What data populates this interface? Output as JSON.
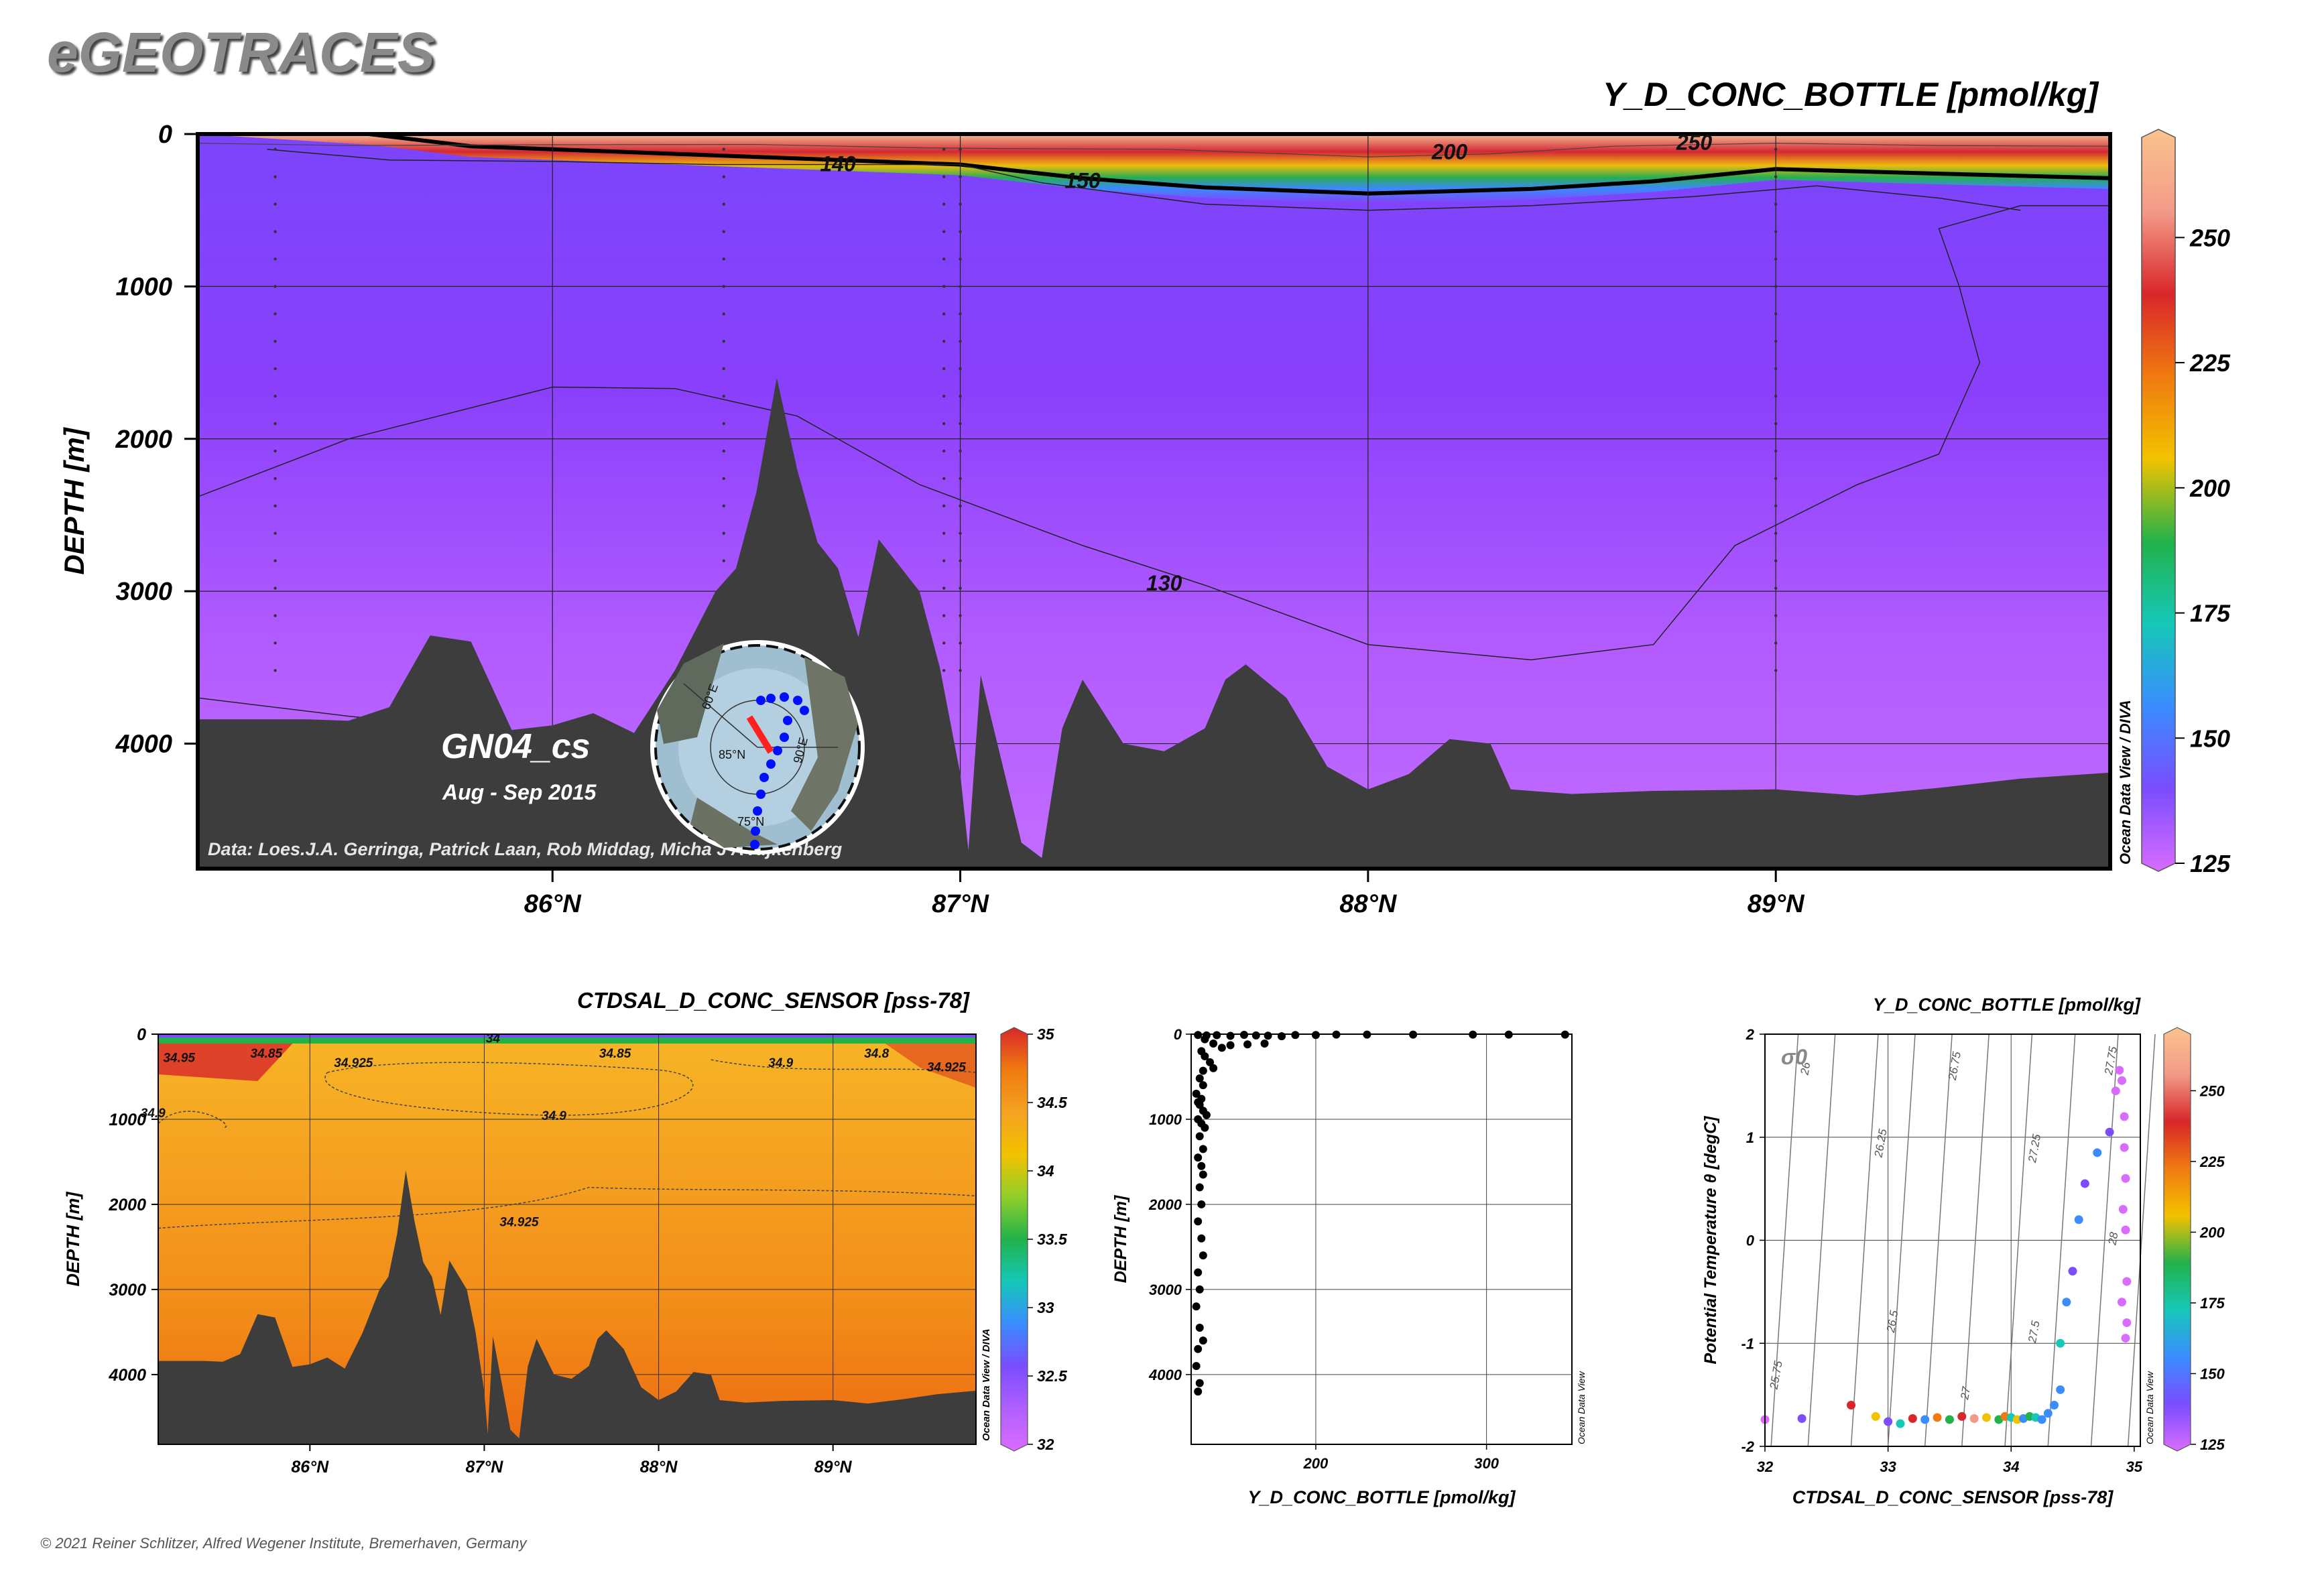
{
  "brand": "eGEOTRACES",
  "copyright": "© 2021 Reiner Schlitzer, Alfred Wegener Institute, Bremerhaven, Germany",
  "colorbar_colors": [
    "#d96cff",
    "#7a4dff",
    "#3a8cff",
    "#15c8b8",
    "#22b24a",
    "#f2c200",
    "#f07a10",
    "#d8262a",
    "#f29a88",
    "#fbc38e"
  ],
  "colors": {
    "section_bg": "#8a3dfb",
    "deep_purple": "#b65cff",
    "bathymetry": "#3d3d3d",
    "salinity_bg": "#f5a221",
    "salinity_deep": "#f07a10",
    "bottle_points": "#000000",
    "track": "#0010ff",
    "track_highlight": "#ff2020"
  },
  "chart_data": [
    {
      "type": "heatmap",
      "title": "Y_D_CONC_BOTTLE [pmol/kg]",
      "ylabel": "DEPTH [m]",
      "xlabel": "",
      "x_ticks": [
        "86°N",
        "87°N",
        "88°N",
        "89°N"
      ],
      "x_tick_values": [
        86,
        87,
        88,
        89
      ],
      "y_ticks": [
        "0",
        "1000",
        "2000",
        "3000",
        "4000"
      ],
      "y_tick_values": [
        0,
        1000,
        2000,
        3000,
        4000
      ],
      "xlim": [
        85.13,
        89.82
      ],
      "ylim": [
        4820,
        0
      ],
      "colorbar_ticks": [
        "125",
        "150",
        "175",
        "200",
        "225",
        "250"
      ],
      "colorbar_range": [
        125,
        270
      ],
      "contour_labels": [
        {
          "label": "140",
          "x": 86.7,
          "depth": 200
        },
        {
          "label": "150",
          "x": 87.3,
          "depth": 310
        },
        {
          "label": "200",
          "x": 88.2,
          "depth": 120
        },
        {
          "label": "250",
          "x": 88.8,
          "depth": 60
        },
        {
          "label": "130",
          "x": 87.5,
          "depth": 2950
        }
      ],
      "station_name": "GN04_cs",
      "date_range": "Aug - Sep 2015",
      "credit": "Data: Loes.J.A. Gerringa, Patrick Laan, Rob Middag, Micha J A Rijkenberg",
      "vertical_watermark": "Ocean Data View / DIVA",
      "map_labels": [
        "90°E",
        "85°N",
        "75°N",
        "60°E"
      ]
    },
    {
      "type": "heatmap",
      "title": "CTDSAL_D_CONC_SENSOR [pss-78]",
      "ylabel": "DEPTH [m]",
      "xlabel": "",
      "x_ticks": [
        "86°N",
        "87°N",
        "88°N",
        "89°N"
      ],
      "x_tick_values": [
        86,
        87,
        88,
        89
      ],
      "y_ticks": [
        "0",
        "1000",
        "2000",
        "3000",
        "4000"
      ],
      "y_tick_values": [
        0,
        1000,
        2000,
        3000,
        4000
      ],
      "xlim": [
        85.13,
        89.82
      ],
      "ylim": [
        4820,
        0
      ],
      "colorbar_ticks": [
        "32",
        "32.5",
        "33",
        "33.5",
        "34",
        "34.5",
        "35"
      ],
      "colorbar_range": [
        32,
        35
      ],
      "contour_labels": [
        {
          "label": "34.95",
          "x": 85.25,
          "depth": 280
        },
        {
          "label": "34.85",
          "x": 85.75,
          "depth": 230
        },
        {
          "label": "34.925",
          "x": 86.25,
          "depth": 340
        },
        {
          "label": "34.85",
          "x": 87.75,
          "depth": 230
        },
        {
          "label": "34.9",
          "x": 88.7,
          "depth": 340
        },
        {
          "label": "34.8",
          "x": 89.25,
          "depth": 230
        },
        {
          "label": "34.925",
          "x": 89.65,
          "depth": 390
        },
        {
          "label": "34.9",
          "x": 85.1,
          "depth": 930
        },
        {
          "label": "34.9",
          "x": 87.4,
          "depth": 960
        },
        {
          "label": "34.925",
          "x": 87.2,
          "depth": 2210
        },
        {
          "label": "34",
          "x": 87.05,
          "depth": 50
        }
      ],
      "vertical_watermark": "Ocean Data View / DIVA"
    },
    {
      "type": "scatter",
      "title": "",
      "xlabel": "Y_D_CONC_BOTTLE [pmol/kg]",
      "ylabel": "DEPTH [m]",
      "x_ticks": [
        "200",
        "300"
      ],
      "y_ticks": [
        "0",
        "1000",
        "2000",
        "3000",
        "4000"
      ],
      "xlim": [
        127,
        350
      ],
      "ylim": [
        4820,
        0
      ],
      "vertical_watermark": "Ocean Data View",
      "points": [
        [
          131,
          10
        ],
        [
          136,
          15
        ],
        [
          142,
          12
        ],
        [
          150,
          20
        ],
        [
          158,
          8
        ],
        [
          165,
          15
        ],
        [
          172,
          18
        ],
        [
          180,
          25
        ],
        [
          188,
          10
        ],
        [
          200,
          10
        ],
        [
          212,
          5
        ],
        [
          230,
          5
        ],
        [
          257,
          5
        ],
        [
          292,
          5
        ],
        [
          313,
          5
        ],
        [
          346,
          5
        ],
        [
          135,
          60
        ],
        [
          140,
          110
        ],
        [
          145,
          160
        ],
        [
          150,
          130
        ],
        [
          160,
          120
        ],
        [
          170,
          110
        ],
        [
          133,
          200
        ],
        [
          135,
          260
        ],
        [
          138,
          330
        ],
        [
          140,
          400
        ],
        [
          134,
          430
        ],
        [
          132,
          520
        ],
        [
          134,
          600
        ],
        [
          130,
          700
        ],
        [
          133,
          760
        ],
        [
          131,
          800
        ],
        [
          132,
          830
        ],
        [
          134,
          900
        ],
        [
          136,
          950
        ],
        [
          131,
          1000
        ],
        [
          133,
          1050
        ],
        [
          135,
          1100
        ],
        [
          132,
          1200
        ],
        [
          134,
          1350
        ],
        [
          131,
          1450
        ],
        [
          133,
          1550
        ],
        [
          134,
          1650
        ],
        [
          132,
          1800
        ],
        [
          133,
          2000
        ],
        [
          131,
          2200
        ],
        [
          133,
          2400
        ],
        [
          134,
          2600
        ],
        [
          131,
          2800
        ],
        [
          132,
          3000
        ],
        [
          130,
          3200
        ],
        [
          132,
          3450
        ],
        [
          134,
          3600
        ],
        [
          131,
          3700
        ],
        [
          130,
          3900
        ],
        [
          132,
          4100
        ],
        [
          131,
          4200
        ]
      ]
    },
    {
      "type": "scatter",
      "title": "Y_D_CONC_BOTTLE [pmol/kg]",
      "xlabel": "CTDSAL_D_CONC_SENSOR [pss-78]",
      "ylabel": "Potential Temperature θ [degC]",
      "x_ticks": [
        "32",
        "33",
        "34",
        "35"
      ],
      "y_ticks": [
        "-2",
        "-1",
        "0",
        "1",
        "2"
      ],
      "xlim": [
        32,
        35.05
      ],
      "ylim": [
        -2,
        2
      ],
      "sigma_label": "σ0",
      "isopycnal_labels": [
        "26",
        "26.25",
        "26.5",
        "26.75",
        "27",
        "27.25",
        "27.5",
        "27.75",
        "28",
        "25.75"
      ],
      "colorbar_ticks": [
        "125",
        "150",
        "175",
        "200",
        "225",
        "250"
      ],
      "colorbar_range": [
        125,
        270
      ],
      "vertical_watermark": "Ocean Data View",
      "points": [
        [
          32.0,
          -1.74,
          130
        ],
        [
          32.3,
          -1.73,
          135
        ],
        [
          32.7,
          -1.6,
          230
        ],
        [
          32.9,
          -1.71,
          200
        ],
        [
          33.0,
          -1.76,
          145
        ],
        [
          33.1,
          -1.78,
          170
        ],
        [
          33.2,
          -1.73,
          240
        ],
        [
          33.3,
          -1.74,
          160
        ],
        [
          33.4,
          -1.72,
          215
        ],
        [
          33.5,
          -1.74,
          190
        ],
        [
          33.6,
          -1.71,
          230
        ],
        [
          33.7,
          -1.73,
          250
        ],
        [
          33.8,
          -1.72,
          210
        ],
        [
          33.9,
          -1.74,
          190
        ],
        [
          33.95,
          -1.71,
          220
        ],
        [
          34.0,
          -1.72,
          175
        ],
        [
          34.05,
          -1.74,
          200
        ],
        [
          34.1,
          -1.73,
          150
        ],
        [
          34.15,
          -1.71,
          195
        ],
        [
          34.2,
          -1.72,
          180
        ],
        [
          34.25,
          -1.74,
          160
        ],
        [
          34.3,
          -1.68,
          155
        ],
        [
          34.35,
          -1.6,
          165
        ],
        [
          34.4,
          -1.45,
          150
        ],
        [
          34.4,
          -1.0,
          180
        ],
        [
          34.45,
          -0.6,
          160
        ],
        [
          34.5,
          -0.3,
          145
        ],
        [
          34.55,
          0.2,
          150
        ],
        [
          34.6,
          0.55,
          145
        ],
        [
          34.7,
          0.85,
          150
        ],
        [
          34.8,
          1.05,
          135
        ],
        [
          34.85,
          1.45,
          130
        ],
        [
          34.88,
          1.65,
          130
        ],
        [
          34.9,
          1.55,
          128
        ],
        [
          34.92,
          1.2,
          128
        ],
        [
          34.93,
          0.6,
          127
        ],
        [
          34.93,
          0.1,
          127
        ],
        [
          34.94,
          -0.4,
          126
        ],
        [
          34.94,
          -0.8,
          126
        ],
        [
          34.93,
          -0.95,
          126
        ],
        [
          34.91,
          0.3,
          128
        ],
        [
          34.9,
          -0.6,
          127
        ],
        [
          34.92,
          0.9,
          130
        ]
      ]
    }
  ],
  "surface_line": [
    [
      85.13,
      60
    ],
    [
      85.5,
      75
    ],
    [
      86.0,
      70
    ],
    [
      86.5,
      68
    ],
    [
      86.9,
      90
    ],
    [
      87.1,
      95
    ],
    [
      87.5,
      100
    ],
    [
      88.0,
      150
    ],
    [
      88.3,
      130
    ],
    [
      88.6,
      80
    ],
    [
      89.0,
      60
    ],
    [
      89.4,
      75
    ],
    [
      89.82,
      80
    ]
  ],
  "thermocline_line": [
    [
      85.55,
      0
    ],
    [
      85.8,
      80
    ],
    [
      86.2,
      120
    ],
    [
      86.6,
      160
    ],
    [
      87.0,
      200
    ],
    [
      87.3,
      290
    ],
    [
      87.6,
      350
    ],
    [
      88.0,
      390
    ],
    [
      88.4,
      360
    ],
    [
      88.7,
      310
    ],
    [
      89.0,
      230
    ],
    [
      89.4,
      260
    ],
    [
      89.82,
      290
    ]
  ],
  "contour_140": [
    [
      85.3,
      100
    ],
    [
      85.6,
      170
    ],
    [
      86.0,
      180
    ],
    [
      86.4,
      200
    ],
    [
      86.8,
      200
    ],
    [
      87.0,
      200
    ],
    [
      87.2,
      320
    ],
    [
      87.6,
      460
    ],
    [
      88.0,
      500
    ],
    [
      88.4,
      470
    ],
    [
      88.8,
      410
    ],
    [
      89.1,
      340
    ],
    [
      89.4,
      420
    ],
    [
      89.6,
      500
    ]
  ],
  "contour_130_left": [
    [
      85.13,
      2380
    ],
    [
      85.5,
      2000
    ],
    [
      86.0,
      1660
    ],
    [
      86.3,
      1670
    ],
    [
      86.6,
      1850
    ],
    [
      86.9,
      2300
    ],
    [
      87.3,
      2700
    ],
    [
      87.6,
      2960
    ],
    [
      88.0,
      3350
    ],
    [
      88.4,
      3450
    ],
    [
      88.7,
      3350
    ],
    [
      88.9,
      2700
    ],
    [
      89.2,
      2300
    ],
    [
      89.4,
      2100
    ],
    [
      89.5,
      1500
    ],
    [
      89.45,
      1000
    ],
    [
      89.4,
      620
    ],
    [
      89.6,
      470
    ],
    [
      89.82,
      470
    ]
  ],
  "contour_130_bottom": [
    [
      85.13,
      3700
    ],
    [
      85.5,
      3820
    ],
    [
      86.0,
      3950
    ],
    [
      86.1,
      4050
    ]
  ],
  "bathymetry_profile": [
    [
      85.13,
      3840
    ],
    [
      85.4,
      3840
    ],
    [
      85.5,
      3850
    ],
    [
      85.6,
      3760
    ],
    [
      85.7,
      3290
    ],
    [
      85.8,
      3330
    ],
    [
      85.9,
      3910
    ],
    [
      86.0,
      3880
    ],
    [
      86.1,
      3800
    ],
    [
      86.2,
      3930
    ],
    [
      86.3,
      3520
    ],
    [
      86.4,
      3000
    ],
    [
      86.45,
      2850
    ],
    [
      86.5,
      2350
    ],
    [
      86.55,
      1600
    ],
    [
      86.6,
      2200
    ],
    [
      86.65,
      2680
    ],
    [
      86.7,
      2850
    ],
    [
      86.75,
      3300
    ],
    [
      86.8,
      2660
    ],
    [
      86.9,
      3000
    ],
    [
      86.95,
      3500
    ],
    [
      87.0,
      4200
    ],
    [
      87.02,
      4700
    ],
    [
      87.05,
      3550
    ],
    [
      87.1,
      4100
    ],
    [
      87.15,
      4650
    ],
    [
      87.2,
      4750
    ],
    [
      87.25,
      3900
    ],
    [
      87.3,
      3580
    ],
    [
      87.4,
      4000
    ],
    [
      87.5,
      4050
    ],
    [
      87.6,
      3900
    ],
    [
      87.65,
      3580
    ],
    [
      87.7,
      3480
    ],
    [
      87.8,
      3700
    ],
    [
      87.9,
      4150
    ],
    [
      88.0,
      4300
    ],
    [
      88.1,
      4200
    ],
    [
      88.2,
      3970
    ],
    [
      88.3,
      4000
    ],
    [
      88.35,
      4300
    ],
    [
      88.5,
      4330
    ],
    [
      88.7,
      4310
    ],
    [
      89.0,
      4300
    ],
    [
      89.2,
      4340
    ],
    [
      89.4,
      4290
    ],
    [
      89.6,
      4230
    ],
    [
      89.82,
      4190
    ]
  ],
  "station_lons": [
    85.32,
    86.42,
    86.96,
    87.0,
    89.0
  ]
}
